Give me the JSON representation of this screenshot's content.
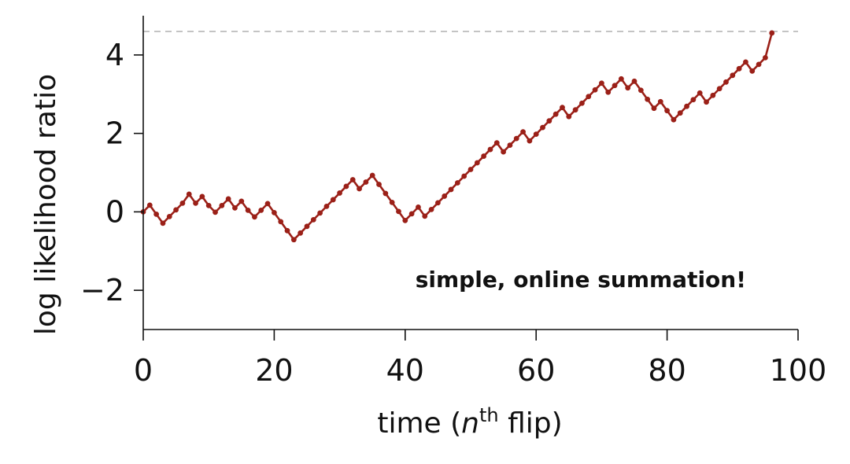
{
  "chart_data": {
    "type": "line",
    "xlabel": {
      "prefix": "time (",
      "var": "n",
      "sup": "th",
      "suffix": " flip)"
    },
    "ylabel": "log likelihood ratio",
    "xlim": [
      0,
      100
    ],
    "ylim": [
      -3,
      5
    ],
    "x_ticks": [
      0,
      20,
      40,
      60,
      80,
      100
    ],
    "x_tick_labels": [
      "0",
      "20",
      "40",
      "60",
      "80",
      "100"
    ],
    "y_ticks": [
      -2,
      0,
      2,
      4
    ],
    "y_tick_labels": [
      "−2",
      "0",
      "2",
      "4"
    ],
    "threshold": 4.6,
    "annotation": "simple, online summation!",
    "series": [
      {
        "x": [
          0,
          1,
          2,
          3,
          4,
          5,
          6,
          7,
          8,
          9,
          10,
          11,
          12,
          13,
          14,
          15,
          16,
          17,
          18,
          19,
          20,
          21,
          22,
          23,
          24,
          25,
          26,
          27,
          28,
          29,
          30,
          31,
          32,
          33,
          34,
          35,
          36,
          37,
          38,
          39,
          40,
          41,
          42,
          43,
          44,
          45,
          46,
          47,
          48,
          49,
          50,
          51,
          52,
          53,
          54,
          55,
          56,
          57,
          58,
          59,
          60,
          61,
          62,
          63,
          64,
          65,
          66,
          67,
          68,
          69,
          70,
          71,
          72,
          73,
          74,
          75,
          76,
          77,
          78,
          79,
          80,
          81,
          82,
          83,
          84,
          85,
          86,
          87,
          88,
          89,
          90,
          91,
          92,
          93,
          94,
          95,
          96
        ],
        "values": [
          0,
          0.17,
          -0.06,
          -0.29,
          -0.12,
          0.05,
          0.22,
          0.45,
          0.22,
          0.39,
          0.16,
          -0.01,
          0.16,
          0.33,
          0.1,
          0.27,
          0.04,
          -0.13,
          0.04,
          0.21,
          -0.02,
          -0.25,
          -0.48,
          -0.71,
          -0.54,
          -0.37,
          -0.2,
          -0.03,
          0.14,
          0.31,
          0.48,
          0.65,
          0.82,
          0.59,
          0.76,
          0.93,
          0.7,
          0.47,
          0.24,
          0.01,
          -0.22,
          -0.05,
          0.12,
          -0.11,
          0.06,
          0.23,
          0.4,
          0.57,
          0.74,
          0.91,
          1.08,
          1.25,
          1.42,
          1.59,
          1.76,
          1.53,
          1.7,
          1.87,
          2.04,
          1.81,
          1.98,
          2.15,
          2.32,
          2.49,
          2.66,
          2.43,
          2.6,
          2.77,
          2.94,
          3.11,
          3.28,
          3.05,
          3.22,
          3.39,
          3.16,
          3.33,
          3.1,
          2.87,
          2.64,
          2.81,
          2.58,
          2.35,
          2.52,
          2.69,
          2.86,
          3.03,
          2.8,
          2.97,
          3.14,
          3.31,
          3.48,
          3.65,
          3.82,
          3.59,
          3.76,
          3.93,
          4.56
        ],
        "color": "#9b2018"
      }
    ],
    "threshold_color": "#c4c4c4",
    "axis_color": "#111111",
    "grid": false
  }
}
